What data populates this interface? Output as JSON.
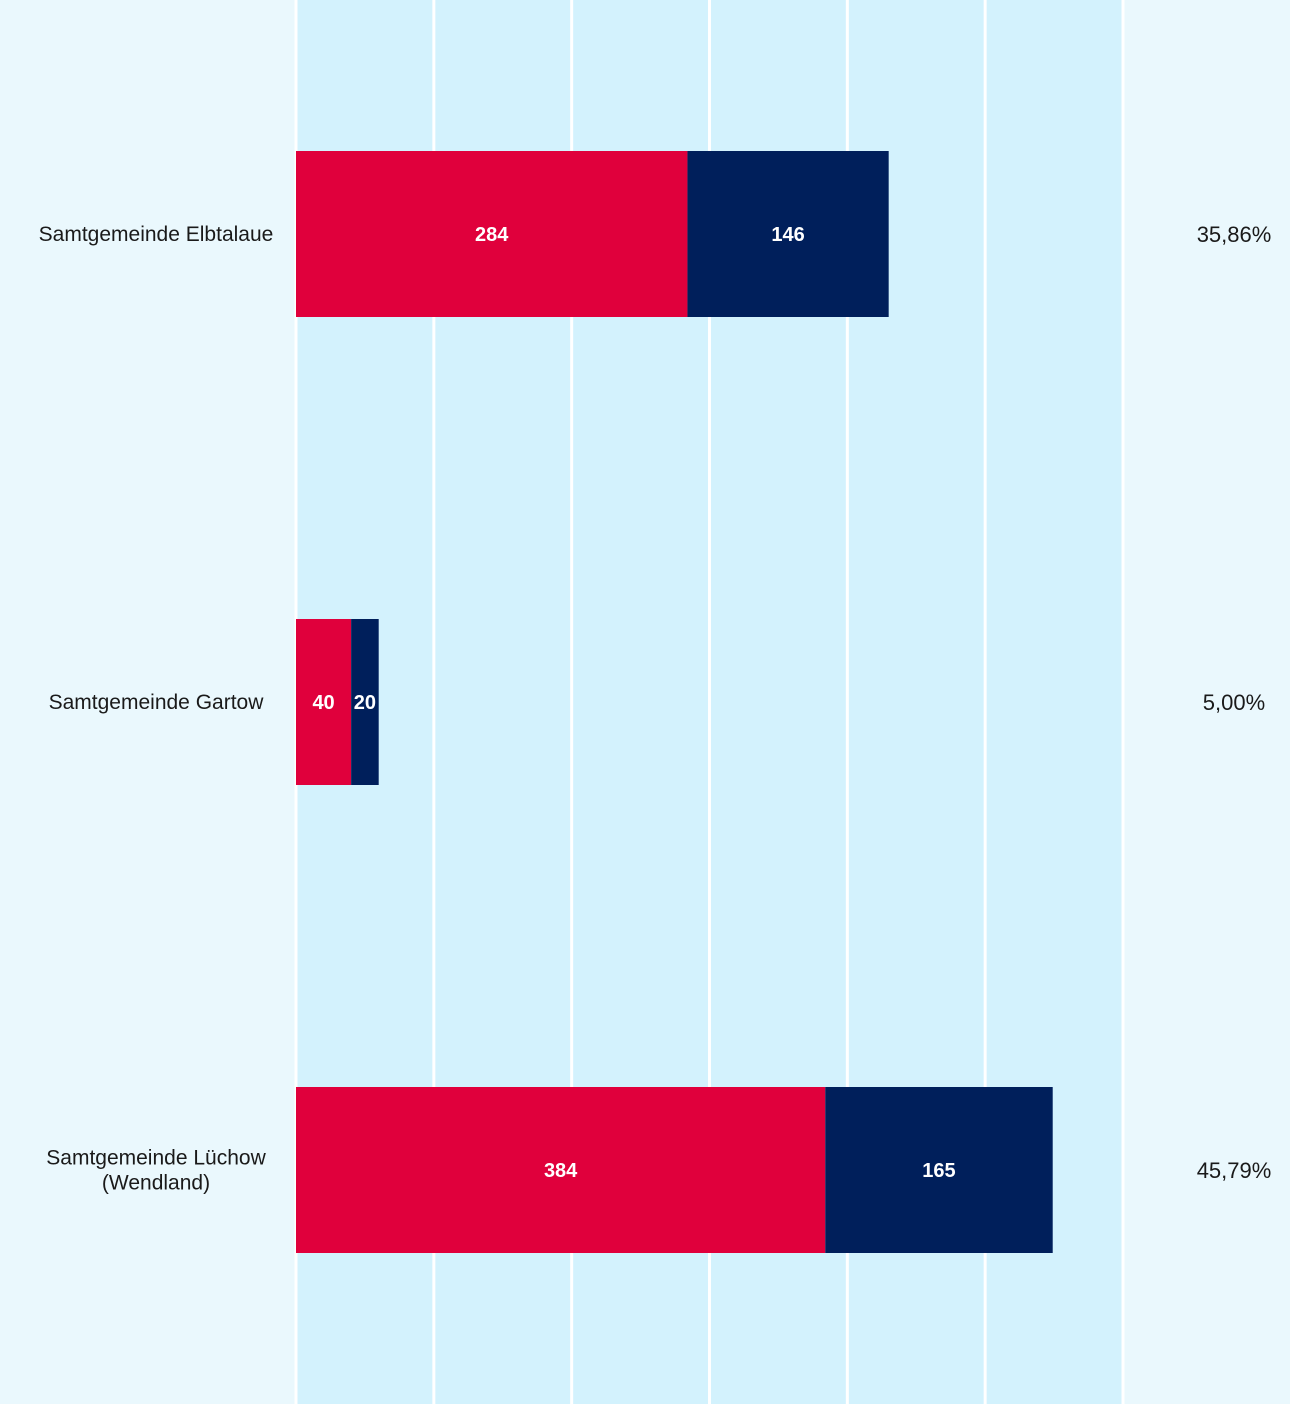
{
  "chart_data": {
    "type": "bar",
    "orientation": "horizontal",
    "stacked": true,
    "categories": [
      [
        "Samtgemeinde Elbtalaue"
      ],
      [
        "Samtgemeinde Gartow"
      ],
      [
        "Samtgemeinde Lüchow",
        "(Wendland)"
      ]
    ],
    "series": [
      {
        "values": [
          284,
          40,
          384
        ],
        "color": "#e0003c"
      },
      {
        "values": [
          146,
          20,
          165
        ],
        "color": "#001f5b"
      }
    ],
    "percentages": [
      "35,86%",
      "5,00%",
      "45,79%"
    ],
    "xlim": [
      0,
      600
    ],
    "grid_step": 100,
    "grid": true,
    "plot_background": "#d3f2fd",
    "page_background": "#eaf8fd",
    "grid_color": "#ffffff"
  }
}
